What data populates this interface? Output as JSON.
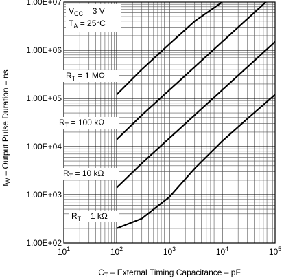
{
  "chart_data": {
    "type": "line",
    "x_scale": "log",
    "y_scale": "log",
    "xlim": [
      10,
      100000
    ],
    "ylim": [
      100,
      10000000
    ],
    "grid": true,
    "xlabel": {
      "pre": "C",
      "sub": "T",
      "post": " – External Timing Capacitance – pF"
    },
    "ylabel": {
      "pre": "t",
      "sub": "W",
      "post": " – Output Pulse Duration – ns"
    },
    "x_ticks": [
      {
        "base": "10",
        "exp": "1"
      },
      {
        "base": "10",
        "exp": "2"
      },
      {
        "base": "10",
        "exp": "3"
      },
      {
        "base": "10",
        "exp": "4"
      },
      {
        "base": "10",
        "exp": "5"
      }
    ],
    "y_ticks": [
      "1.00E+02",
      "1.00E+03",
      "1.00E+04",
      "1.00E+05",
      "1.00E+06",
      "1.00E+07"
    ],
    "conditions": [
      {
        "pre": "V",
        "sub": "CC",
        "post": " = 3 V"
      },
      {
        "pre": "T",
        "sub": "A",
        "post": " = 25°C"
      }
    ],
    "series": [
      {
        "name": {
          "pre": "R",
          "sub": "T",
          "post": " = 1 MΩ"
        },
        "x": [
          100,
          300,
          1000,
          3000,
          10000
        ],
        "y": [
          120000,
          400000,
          1350000,
          4000000,
          10000000
        ]
      },
      {
        "name": {
          "pre": "R",
          "sub": "T",
          "post": " = 100 kΩ"
        },
        "x": [
          100,
          300,
          1000,
          3000,
          10000,
          30000,
          100000
        ],
        "y": [
          14000,
          45000,
          150000,
          450000,
          1500000,
          4500000,
          15000000
        ]
      },
      {
        "name": {
          "pre": "R",
          "sub": "T",
          "post": " = 10 kΩ"
        },
        "x": [
          100,
          300,
          1000,
          3000,
          10000,
          30000,
          100000
        ],
        "y": [
          1400,
          4500,
          15000,
          45000,
          150000,
          450000,
          1500000
        ]
      },
      {
        "name": {
          "pre": "R",
          "sub": "T",
          "post": " = 1 kΩ"
        },
        "x": [
          100,
          300,
          1000,
          3000,
          10000,
          30000,
          100000
        ],
        "y": [
          200,
          320,
          900,
          3500,
          13000,
          38000,
          120000
        ]
      }
    ]
  }
}
